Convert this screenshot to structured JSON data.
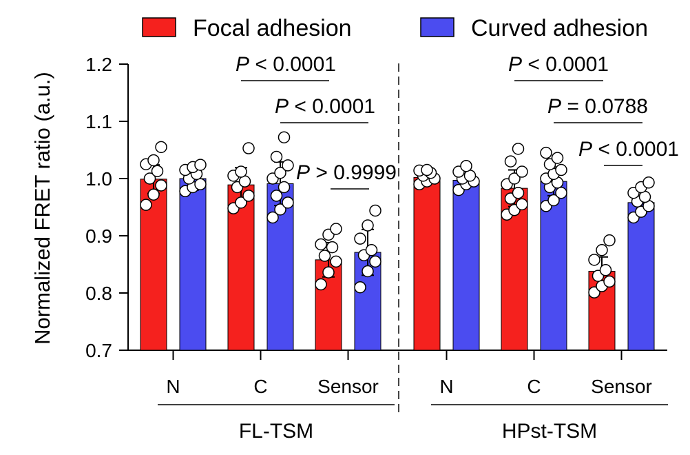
{
  "chart_data": {
    "type": "bar",
    "ylabel": "Normalized FRET ratio (a.u.)",
    "ylim": [
      0.7,
      1.2
    ],
    "yticks": [
      "0.7",
      "0.8",
      "0.9",
      "1.0",
      "1.1",
      "1.2"
    ],
    "yticks_values": [
      0.7,
      0.8,
      0.9,
      1.0,
      1.1,
      1.2
    ],
    "colors": {
      "Focal adhesion": "#f5211e",
      "Curved adhesion": "#4b4cf0"
    },
    "legend": [
      "Focal adhesion",
      "Curved adhesion"
    ],
    "legend_position": "top",
    "groups": [
      {
        "label": "FL-TSM",
        "categories": [
          "N",
          "C",
          "Sensor"
        ],
        "series": [
          {
            "name": "Focal adhesion",
            "values": [
              0.999,
              0.989,
              0.858
            ],
            "sd": [
              0.025,
              0.03,
              0.03
            ],
            "points": [
              [
                0.954,
                0.972,
                0.988,
                1.0,
                1.013,
                1.025,
                1.032,
                1.055
              ],
              [
                0.948,
                0.958,
                0.97,
                0.985,
                0.995,
                1.005,
                1.012,
                1.053
              ],
              [
                0.815,
                0.836,
                0.855,
                0.865,
                0.88,
                0.885,
                0.902,
                0.912
              ]
            ]
          },
          {
            "name": "Curved adhesion",
            "values": [
              1.0,
              0.991,
              0.871
            ],
            "sd": [
              0.02,
              0.038,
              0.04
            ],
            "points": [
              [
                0.978,
                0.985,
                0.99,
                1.0,
                1.008,
                1.015,
                1.02,
                1.024
              ],
              [
                0.932,
                0.946,
                0.958,
                0.97,
                0.985,
                1.0,
                1.01,
                1.023,
                1.038,
                1.072
              ],
              [
                0.81,
                0.838,
                0.855,
                0.866,
                0.875,
                0.895,
                0.918,
                0.944
              ]
            ]
          }
        ]
      },
      {
        "label": "HPst-TSM",
        "categories": [
          "N",
          "C",
          "Sensor"
        ],
        "series": [
          {
            "name": "Focal adhesion",
            "values": [
              1.002,
              0.983,
              0.838
            ],
            "sd": [
              0.01,
              0.032,
              0.025
            ],
            "points": [
              [
                0.99,
                0.995,
                1.0,
                1.005,
                1.01,
                1.014,
                1.015
              ],
              [
                0.937,
                0.945,
                0.955,
                0.965,
                0.975,
                0.99,
                1.0,
                1.012,
                1.03,
                1.052
              ],
              [
                0.801,
                0.812,
                0.82,
                0.83,
                0.84,
                0.858,
                0.875,
                0.892
              ]
            ]
          },
          {
            "name": "Curved adhesion",
            "values": [
              0.997,
              0.995,
              0.958
            ],
            "sd": [
              0.01,
              0.025,
              0.018
            ],
            "points": [
              [
                0.98,
                0.99,
                0.995,
                1.0,
                1.005,
                1.012,
                1.022
              ],
              [
                0.952,
                0.962,
                0.975,
                0.985,
                0.993,
                1.0,
                1.008,
                1.015,
                1.025,
                1.036,
                1.045
              ],
              [
                0.932,
                0.942,
                0.952,
                0.96,
                0.968,
                0.975,
                0.985,
                0.993
              ]
            ]
          }
        ]
      }
    ],
    "annotations": [
      {
        "label": "P < 0.0001",
        "group": 0,
        "from": [
          1,
          0
        ],
        "to": [
          2,
          0
        ]
      },
      {
        "label": "P < 0.0001",
        "group": 0,
        "from": [
          1,
          1
        ],
        "to": [
          2,
          1
        ]
      },
      {
        "label": "P > 0.9999",
        "group": 0,
        "from": [
          2,
          0
        ],
        "to": [
          2,
          1
        ]
      },
      {
        "label": "P < 0.0001",
        "group": 1,
        "from": [
          1,
          0
        ],
        "to": [
          2,
          0
        ]
      },
      {
        "label": "P = 0.0788",
        "group": 1,
        "from": [
          1,
          1
        ],
        "to": [
          2,
          1
        ]
      },
      {
        "label": "P < 0.0001",
        "group": 1,
        "from": [
          2,
          0
        ],
        "to": [
          2,
          1
        ]
      }
    ]
  }
}
